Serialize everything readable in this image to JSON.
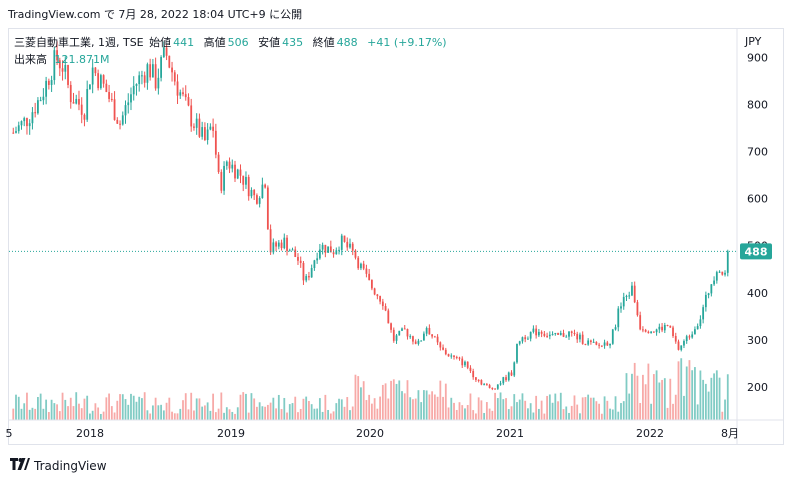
{
  "header": {
    "caption": "TradingView.com で 7月 28, 2022 18:04 UTC+9 に公開"
  },
  "legend": {
    "symbol": "三菱自動車工業, 1週, TSE",
    "open_label": "始値",
    "open": "441",
    "high_label": "高値",
    "high": "506",
    "low_label": "安値",
    "low": "435",
    "close_label": "終値",
    "close": "488",
    "change": "+41 (+9.17%)"
  },
  "volume": {
    "label": "出来高",
    "value": "121.871M"
  },
  "currency": "JPY",
  "last_price_badge": "488",
  "footer": {
    "brand": "TradingView"
  },
  "colors": {
    "up": "#26a69a",
    "down": "#ef5350",
    "up_volume": "#80cbc4",
    "down_volume": "#f7a9a7"
  },
  "chart_data": {
    "type": "candlestick",
    "interval": "1週",
    "y_ticks": [
      "900",
      "800",
      "700",
      "600",
      "500",
      "400",
      "300",
      "200"
    ],
    "x_ticks": [
      "5",
      "2018",
      "2019",
      "2020",
      "2021",
      "2022",
      "8月"
    ],
    "ylim": [
      130,
      960
    ],
    "last_price": 488,
    "price_path": [
      {
        "x": 2017.55,
        "y": 740
      },
      {
        "x": 2017.65,
        "y": 770
      },
      {
        "x": 2017.75,
        "y": 820
      },
      {
        "x": 2017.85,
        "y": 900
      },
      {
        "x": 2017.9,
        "y": 880
      },
      {
        "x": 2017.95,
        "y": 820
      },
      {
        "x": 2018.05,
        "y": 790
      },
      {
        "x": 2018.1,
        "y": 880
      },
      {
        "x": 2018.2,
        "y": 830
      },
      {
        "x": 2018.3,
        "y": 760
      },
      {
        "x": 2018.4,
        "y": 840
      },
      {
        "x": 2018.5,
        "y": 880
      },
      {
        "x": 2018.55,
        "y": 850
      },
      {
        "x": 2018.62,
        "y": 910
      },
      {
        "x": 2018.7,
        "y": 840
      },
      {
        "x": 2018.8,
        "y": 770
      },
      {
        "x": 2018.9,
        "y": 720
      },
      {
        "x": 2018.95,
        "y": 760
      },
      {
        "x": 2019.0,
        "y": 620
      },
      {
        "x": 2019.05,
        "y": 680
      },
      {
        "x": 2019.15,
        "y": 650
      },
      {
        "x": 2019.25,
        "y": 600
      },
      {
        "x": 2019.32,
        "y": 640
      },
      {
        "x": 2019.35,
        "y": 490
      },
      {
        "x": 2019.45,
        "y": 510
      },
      {
        "x": 2019.55,
        "y": 470
      },
      {
        "x": 2019.6,
        "y": 420
      },
      {
        "x": 2019.7,
        "y": 500
      },
      {
        "x": 2019.8,
        "y": 490
      },
      {
        "x": 2019.85,
        "y": 510
      },
      {
        "x": 2019.95,
        "y": 480
      },
      {
        "x": 2020.05,
        "y": 420
      },
      {
        "x": 2020.15,
        "y": 380
      },
      {
        "x": 2020.22,
        "y": 300
      },
      {
        "x": 2020.3,
        "y": 320
      },
      {
        "x": 2020.4,
        "y": 290
      },
      {
        "x": 2020.45,
        "y": 330
      },
      {
        "x": 2020.55,
        "y": 280
      },
      {
        "x": 2020.65,
        "y": 260
      },
      {
        "x": 2020.72,
        "y": 250
      },
      {
        "x": 2020.8,
        "y": 220
      },
      {
        "x": 2020.9,
        "y": 195
      },
      {
        "x": 2020.95,
        "y": 205
      },
      {
        "x": 2021.05,
        "y": 230
      },
      {
        "x": 2021.1,
        "y": 300
      },
      {
        "x": 2021.15,
        "y": 310
      },
      {
        "x": 2021.25,
        "y": 320
      },
      {
        "x": 2021.35,
        "y": 305
      },
      {
        "x": 2021.45,
        "y": 315
      },
      {
        "x": 2021.55,
        "y": 300
      },
      {
        "x": 2021.65,
        "y": 285
      },
      {
        "x": 2021.75,
        "y": 300
      },
      {
        "x": 2021.8,
        "y": 360
      },
      {
        "x": 2021.85,
        "y": 390
      },
      {
        "x": 2021.9,
        "y": 410
      },
      {
        "x": 2021.95,
        "y": 330
      },
      {
        "x": 2022.05,
        "y": 320
      },
      {
        "x": 2022.15,
        "y": 330
      },
      {
        "x": 2022.22,
        "y": 280
      },
      {
        "x": 2022.3,
        "y": 310
      },
      {
        "x": 2022.38,
        "y": 350
      },
      {
        "x": 2022.45,
        "y": 420
      },
      {
        "x": 2022.5,
        "y": 460
      },
      {
        "x": 2022.55,
        "y": 430
      },
      {
        "x": 2022.58,
        "y": 488
      }
    ]
  }
}
